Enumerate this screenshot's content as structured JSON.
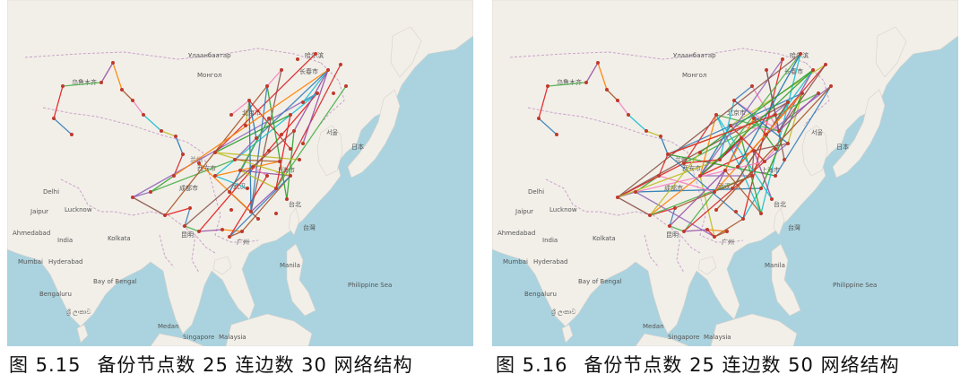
{
  "figures": [
    {
      "number": "图 5.15",
      "title": "备份节点数 25 连边数 30 网络结构",
      "labels": {
        "chengdu": "成都市",
        "beijing": "北京市",
        "shanghai": "上海市",
        "guangzhou": "广州",
        "wuhan": "武汉",
        "xian": "西安市",
        "harbin": "哈尔滨",
        "changchun": "长春市",
        "urumqi": "乌鲁木齐",
        "lanzhou": "兰州",
        "kunming": "昆明",
        "taipei": "台北",
        "seoul": "서울",
        "japan": "日本",
        "mongolia": "Монгол",
        "delhi": "Delhi",
        "kolkata": "Kolkata",
        "mumbai": "Mumbai",
        "hyderabad": "Hyderabad",
        "bengaluru": "Bengaluru",
        "jaipur": "Jaipur",
        "lucknow": "Lucknow",
        "ahmedabad": "Ahmedabad",
        "india": "India",
        "manila": "Manila",
        "medan": "Medan",
        "singapore": "Singapore",
        "malaysia": "Malaysia",
        "bay_of_bengal": "Bay of Bengal",
        "philippine_sea": "Philippine Sea",
        "sri_lanka": "ශ්‍රී ලංකාව",
        "ulaanbaatar": "Улаанбаатар",
        "taiwan": "台灣"
      }
    },
    {
      "number": "图 5.16",
      "title": "备份节点数 25 连边数 50 网络结构",
      "labels": {
        "chengdu": "成都市",
        "beijing": "北京市",
        "shanghai": "上海市",
        "guangzhou": "广州",
        "wuhan": "武汉",
        "xian": "西安市",
        "harbin": "哈尔滨",
        "changchun": "长春市",
        "urumqi": "乌鲁木齐",
        "lanzhou": "兰州",
        "kunming": "昆明",
        "taipei": "台北",
        "seoul": "서울",
        "japan": "日本",
        "mongolia": "Монгол",
        "delhi": "Delhi",
        "kolkata": "Kolkata",
        "mumbai": "Mumbai",
        "hyderabad": "Hyderabad",
        "bengaluru": "Bengaluru",
        "jaipur": "Jaipur",
        "lucknow": "Lucknow",
        "ahmedabad": "Ahmedabad",
        "india": "India",
        "manila": "Manila",
        "medan": "Medan",
        "singapore": "Singapore",
        "malaysia": "Malaysia",
        "bay_of_bengal": "Bay of Bengal",
        "philippine_sea": "Philippine Sea",
        "sri_lanka": "ශ්‍රී ලංකාව",
        "ulaanbaatar": "Улаанбаатар",
        "taiwan": "台灣"
      }
    }
  ],
  "colors": {
    "sea": "#aad3df",
    "land": "#f2efe9",
    "border": "#c9a2c9",
    "edges": [
      "#e41a1c",
      "#377eb8",
      "#4daf4a",
      "#984ea3",
      "#ff7f00",
      "#a65628",
      "#f781bf",
      "#17becf",
      "#bcbd22",
      "#1f77b4",
      "#d62728",
      "#2ca02c",
      "#9467bd",
      "#8c564b"
    ]
  }
}
